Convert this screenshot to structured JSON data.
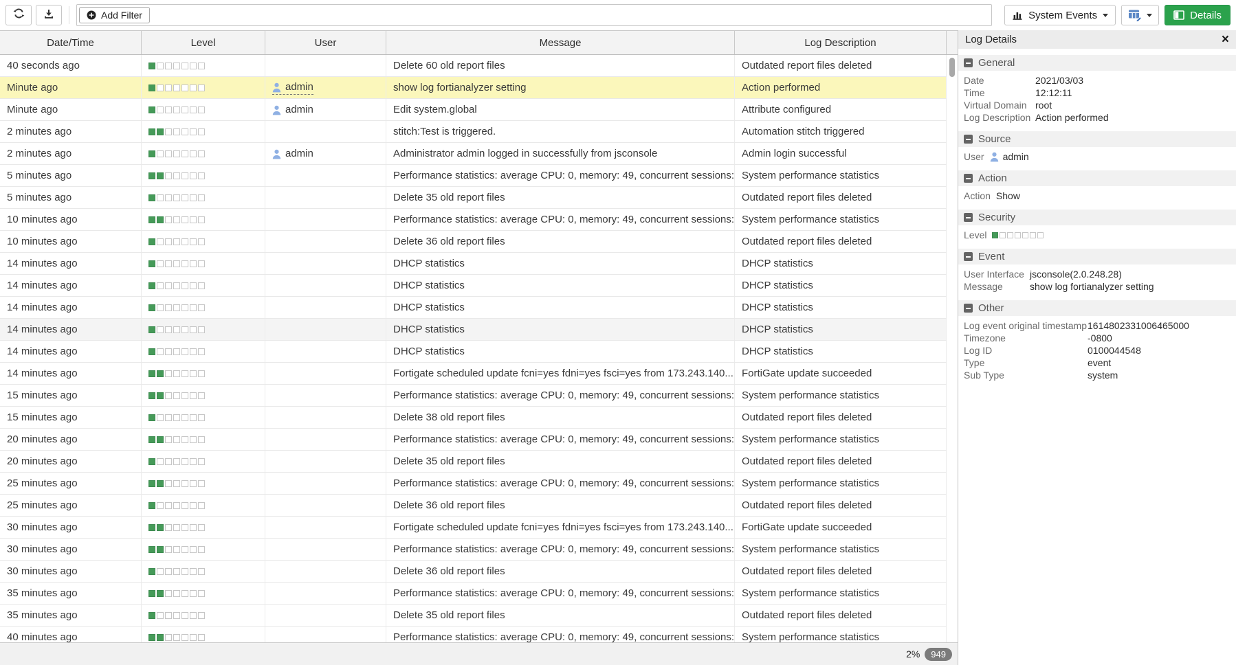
{
  "toolbar": {
    "add_filter_label": "Add Filter",
    "view_selector_label": "System Events",
    "details_label": "Details"
  },
  "table": {
    "columns": [
      "Date/Time",
      "Level",
      "User",
      "Message",
      "Log Description"
    ],
    "rows": [
      {
        "time": "40 seconds ago",
        "level": 1,
        "user": "",
        "message": "Delete 60 old report files",
        "description": "Outdated report files deleted",
        "selected": false
      },
      {
        "time": "Minute ago",
        "level": 1,
        "user": "admin",
        "message": "show log fortianalyzer setting",
        "description": "Action performed",
        "selected": true
      },
      {
        "time": "Minute ago",
        "level": 1,
        "user": "admin",
        "message": "Edit system.global",
        "description": "Attribute configured",
        "selected": false
      },
      {
        "time": "2 minutes ago",
        "level": 2,
        "user": "",
        "message": "stitch:Test is triggered.",
        "description": "Automation stitch triggered",
        "selected": false
      },
      {
        "time": "2 minutes ago",
        "level": 1,
        "user": "admin",
        "message": "Administrator admin logged in successfully from jsconsole",
        "description": "Admin login successful",
        "selected": false
      },
      {
        "time": "5 minutes ago",
        "level": 2,
        "user": "",
        "message": "Performance statistics: average CPU: 0, memory: 49, concurrent sessions: ...",
        "description": "System performance statistics",
        "selected": false
      },
      {
        "time": "5 minutes ago",
        "level": 1,
        "user": "",
        "message": "Delete 35 old report files",
        "description": "Outdated report files deleted",
        "selected": false
      },
      {
        "time": "10 minutes ago",
        "level": 2,
        "user": "",
        "message": "Performance statistics: average CPU: 0, memory: 49, concurrent sessions: ...",
        "description": "System performance statistics",
        "selected": false
      },
      {
        "time": "10 minutes ago",
        "level": 1,
        "user": "",
        "message": "Delete 36 old report files",
        "description": "Outdated report files deleted",
        "selected": false
      },
      {
        "time": "14 minutes ago",
        "level": 1,
        "user": "",
        "message": "DHCP statistics",
        "description": "DHCP statistics",
        "selected": false
      },
      {
        "time": "14 minutes ago",
        "level": 1,
        "user": "",
        "message": "DHCP statistics",
        "description": "DHCP statistics",
        "selected": false
      },
      {
        "time": "14 minutes ago",
        "level": 1,
        "user": "",
        "message": "DHCP statistics",
        "description": "DHCP statistics",
        "selected": false
      },
      {
        "time": "14 minutes ago",
        "level": 1,
        "user": "",
        "message": "DHCP statistics",
        "description": "DHCP statistics",
        "selected": false,
        "hovered": true
      },
      {
        "time": "14 minutes ago",
        "level": 1,
        "user": "",
        "message": "DHCP statistics",
        "description": "DHCP statistics",
        "selected": false
      },
      {
        "time": "14 minutes ago",
        "level": 2,
        "user": "",
        "message": "Fortigate scheduled update fcni=yes fdni=yes fsci=yes from 173.243.140....",
        "description": "FortiGate update succeeded",
        "selected": false
      },
      {
        "time": "15 minutes ago",
        "level": 2,
        "user": "",
        "message": "Performance statistics: average CPU: 0, memory: 49, concurrent sessions: ...",
        "description": "System performance statistics",
        "selected": false
      },
      {
        "time": "15 minutes ago",
        "level": 1,
        "user": "",
        "message": "Delete 38 old report files",
        "description": "Outdated report files deleted",
        "selected": false
      },
      {
        "time": "20 minutes ago",
        "level": 2,
        "user": "",
        "message": "Performance statistics: average CPU: 0, memory: 49, concurrent sessions: ...",
        "description": "System performance statistics",
        "selected": false
      },
      {
        "time": "20 minutes ago",
        "level": 1,
        "user": "",
        "message": "Delete 35 old report files",
        "description": "Outdated report files deleted",
        "selected": false
      },
      {
        "time": "25 minutes ago",
        "level": 2,
        "user": "",
        "message": "Performance statistics: average CPU: 0, memory: 49, concurrent sessions: ...",
        "description": "System performance statistics",
        "selected": false
      },
      {
        "time": "25 minutes ago",
        "level": 1,
        "user": "",
        "message": "Delete 36 old report files",
        "description": "Outdated report files deleted",
        "selected": false
      },
      {
        "time": "30 minutes ago",
        "level": 2,
        "user": "",
        "message": "Fortigate scheduled update fcni=yes fdni=yes fsci=yes from 173.243.140....",
        "description": "FortiGate update succeeded",
        "selected": false
      },
      {
        "time": "30 minutes ago",
        "level": 2,
        "user": "",
        "message": "Performance statistics: average CPU: 0, memory: 49, concurrent sessions: ...",
        "description": "System performance statistics",
        "selected": false
      },
      {
        "time": "30 minutes ago",
        "level": 1,
        "user": "",
        "message": "Delete 36 old report files",
        "description": "Outdated report files deleted",
        "selected": false
      },
      {
        "time": "35 minutes ago",
        "level": 2,
        "user": "",
        "message": "Performance statistics: average CPU: 0, memory: 49, concurrent sessions: ...",
        "description": "System performance statistics",
        "selected": false
      },
      {
        "time": "35 minutes ago",
        "level": 1,
        "user": "",
        "message": "Delete 35 old report files",
        "description": "Outdated report files deleted",
        "selected": false
      },
      {
        "time": "40 minutes ago",
        "level": 2,
        "user": "",
        "message": "Performance statistics: average CPU: 0, memory: 49, concurrent sessions: ...",
        "description": "System performance statistics",
        "selected": false
      }
    ]
  },
  "statusbar": {
    "scroll_percent": "2%",
    "total_count": "949"
  },
  "details_panel": {
    "title": "Log Details",
    "sections": [
      {
        "title": "General",
        "fields": [
          {
            "label": "Date",
            "value": "2021/03/03"
          },
          {
            "label": "Time",
            "value": "12:12:11"
          },
          {
            "label": "Virtual Domain",
            "value": "root"
          },
          {
            "label": "Log Description",
            "value": "Action performed"
          }
        ]
      },
      {
        "title": "Source",
        "fields": [
          {
            "label": "User",
            "value": "admin",
            "type": "user"
          }
        ]
      },
      {
        "title": "Action",
        "fields": [
          {
            "label": "Action",
            "value": "Show"
          }
        ]
      },
      {
        "title": "Security",
        "fields": [
          {
            "label": "Level",
            "value": 1,
            "type": "level"
          }
        ]
      },
      {
        "title": "Event",
        "fields": [
          {
            "label": "User Interface",
            "value": "jsconsole(2.0.248.28)"
          },
          {
            "label": "Message",
            "value": "show log fortianalyzer setting"
          }
        ]
      },
      {
        "title": "Other",
        "fields": [
          {
            "label": "Log event original timestamp",
            "value": "1614802331006465000"
          },
          {
            "label": "Timezone",
            "value": "-0800"
          },
          {
            "label": "Log ID",
            "value": "0100044548"
          },
          {
            "label": "Type",
            "value": "event"
          },
          {
            "label": "Sub Type",
            "value": "system"
          }
        ]
      }
    ]
  },
  "colors": {
    "accent_green": "#2ba24c",
    "selected_row": "#fbf7bb",
    "level_green": "#459a58",
    "user_blue": "#8fb0e3"
  }
}
